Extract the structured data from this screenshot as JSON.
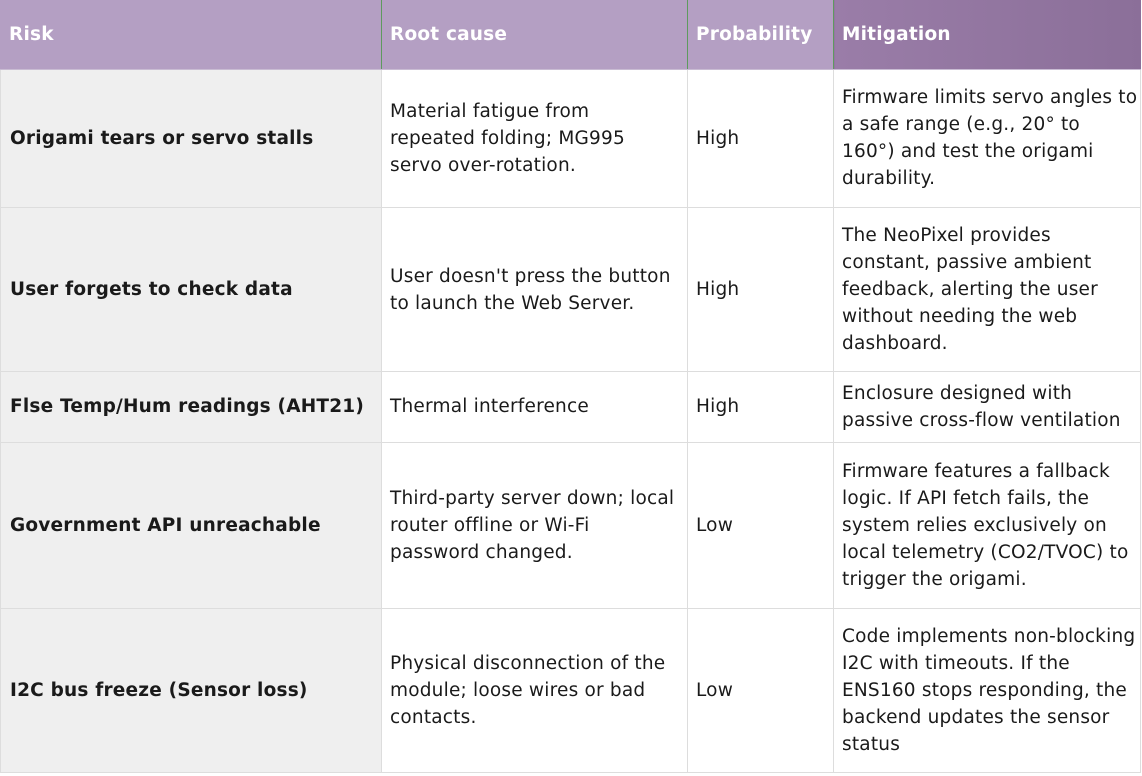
{
  "table": {
    "headers": {
      "risk": "Risk",
      "root_cause": "Root cause",
      "probability": "Probability",
      "mitigation": "Mitigation"
    },
    "rows": [
      {
        "risk": "Origami tears or servo stalls",
        "root_cause": "Material fatigue from repeated folding; MG995 servo over-rotation.",
        "probability": "High",
        "mitigation": "Firmware limits servo angles to a safe range (e.g., 20° to 160°) and test the origami durability."
      },
      {
        "risk": "User forgets to check data",
        "root_cause": "User doesn't press the button to launch the Web Server.",
        "probability": "High",
        "mitigation": "The NeoPixel provides constant, passive ambient feedback, alerting the user without needing the web dashboard."
      },
      {
        "risk": "Flse Temp/Hum readings (AHT21)",
        "root_cause": "Thermal interference",
        "probability": "High",
        "mitigation": "Enclosure designed with passive cross-flow ventilation"
      },
      {
        "risk": "Government API unreachable",
        "root_cause": "Third-party server down; local router offline or Wi-Fi password changed.",
        "probability": "Low",
        "mitigation": "Firmware features a fallback logic. If API fetch fails, the system relies exclusively on local telemetry (CO2/TVOC) to trigger the origami."
      },
      {
        "risk": "I2C bus freeze (Sensor loss)",
        "root_cause": "Physical disconnection of the module; loose wires or bad contacts.",
        "probability": "Low",
        "mitigation": "Code implements non-blocking I2C with timeouts. If the ENS160 stops responding, the backend updates the sensor status"
      }
    ]
  },
  "colors": {
    "header_bg": "#b49fc3",
    "header_mitigation_bg": "#8b6f99",
    "risk_column_bg": "#efefef",
    "header_text": "#ffffff"
  }
}
